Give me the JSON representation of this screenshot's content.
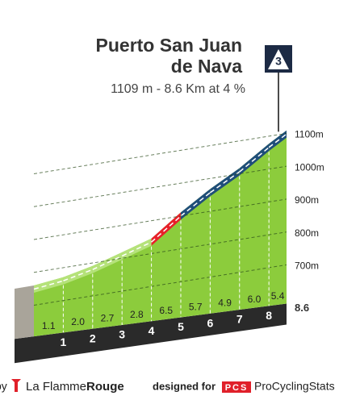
{
  "chart_data": {
    "type": "profile",
    "title": [
      "Puerto San Juan",
      "de Nava"
    ],
    "subtitle": "1109 m - 8.6 Km at 4 %",
    "category": "3",
    "x": [
      0,
      1,
      2,
      3,
      4,
      5,
      6,
      7,
      8,
      8.6
    ],
    "values": [
      760,
      771,
      791,
      818,
      846,
      911,
      968,
      1017,
      1077,
      1109
    ],
    "gradients": [
      1.1,
      2.0,
      2.7,
      2.8,
      6.5,
      5.7,
      4.9,
      6.0,
      5.4
    ],
    "gradient_labels": [
      "1.1",
      "2.0",
      "2.7",
      "2.8",
      "6.5",
      "5.7",
      "4.9",
      "6.0",
      "5.4"
    ],
    "segment_colors": [
      "#b5e27a",
      "#b5e27a",
      "#b5e27a",
      "#b5e27a",
      "#e8202a",
      "#1f4e79",
      "#1f4e79",
      "#1f4e79",
      "#1f4e79"
    ],
    "body_color": "#8ccc3c",
    "xticks": [
      1,
      2,
      3,
      4,
      5,
      6,
      7,
      8
    ],
    "distance_label": "8.6",
    "ylim": [
      700,
      1100
    ],
    "yticks": [
      {
        "value": 700,
        "label": "700m"
      },
      {
        "value": 800,
        "label": "800m"
      },
      {
        "value": 900,
        "label": "900m"
      },
      {
        "value": 1000,
        "label": "1000m"
      },
      {
        "value": 1100,
        "label": "1100m"
      }
    ],
    "grid": true
  },
  "footer": {
    "by": "by",
    "brand": "La Flamme",
    "brand_bold": "Rouge",
    "designed": "designed for",
    "pcs": "PCS",
    "site": "ProCyclingStats"
  }
}
